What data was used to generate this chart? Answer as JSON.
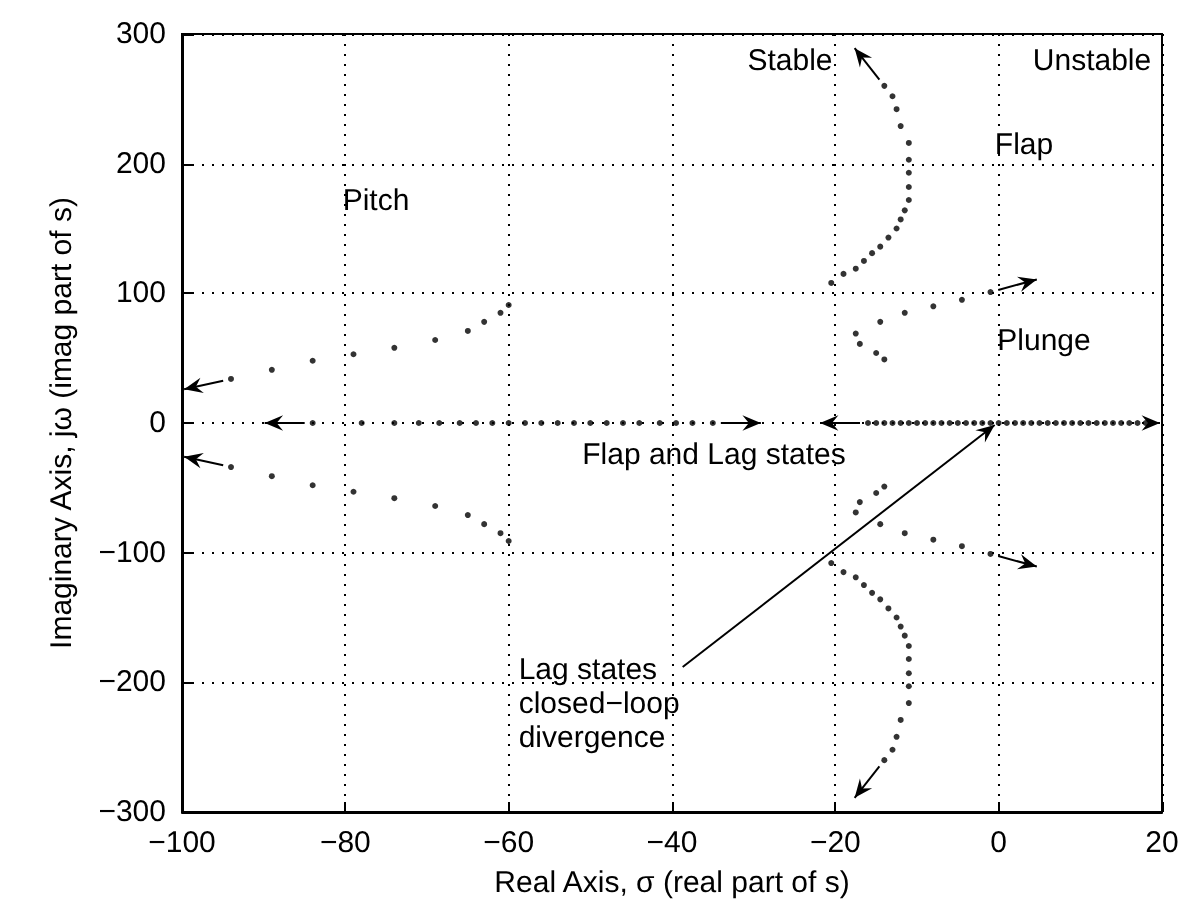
{
  "chart_data": {
    "type": "scatter",
    "xlabel": "Real Axis, σ (real part of s)",
    "ylabel": "Imaginary Axis, jω (imag part of s)",
    "xlim": [
      -100,
      20
    ],
    "xticks": [
      -100,
      -80,
      -60,
      -40,
      -20,
      0,
      20
    ],
    "ylim": [
      -300,
      300
    ],
    "yticks": [
      -300,
      -200,
      -100,
      0,
      100,
      200,
      300
    ],
    "grid": true,
    "marker": "circle",
    "series": [
      {
        "color": "#000000",
        "x": [
          -60,
          -61,
          -63,
          -65,
          -69,
          -74,
          -79,
          -84,
          -89,
          -94
        ],
        "values": [
          91,
          85,
          78,
          71,
          64,
          58,
          53,
          48,
          41,
          34
        ]
      },
      {
        "color": "#000000",
        "x": [
          -60,
          -61,
          -63,
          -65,
          -69,
          -74,
          -79,
          -84,
          -89,
          -94
        ],
        "values": [
          -91,
          -85,
          -78,
          -71,
          -64,
          -58,
          -53,
          -48,
          -41,
          -34
        ]
      },
      {
        "color": "#000000",
        "x": [
          -20.5,
          -19,
          -17.5,
          -16.5,
          -15.5,
          -14.5,
          -13.5,
          -12.5,
          -12,
          -11.5,
          -11,
          -11,
          -11,
          -11,
          -11,
          -12,
          -12.5,
          -13,
          -14
        ],
        "values": [
          108,
          115,
          119,
          125,
          131,
          136,
          143,
          150,
          157,
          164,
          172,
          182,
          193,
          203,
          216,
          229,
          242,
          252,
          260
        ]
      },
      {
        "color": "#000000",
        "x": [
          -20.5,
          -19,
          -17.5,
          -16.5,
          -15.5,
          -14.5,
          -13.5,
          -12.5,
          -12,
          -11.5,
          -11,
          -11,
          -11,
          -11,
          -11,
          -12,
          -12.5,
          -13,
          -14
        ],
        "values": [
          -108,
          -115,
          -119,
          -125,
          -131,
          -136,
          -143,
          -150,
          -157,
          -164,
          -172,
          -182,
          -193,
          -203,
          -216,
          -229,
          -242,
          -252,
          -260
        ]
      },
      {
        "color": "#000000",
        "x": [
          -14,
          -15,
          -17,
          -17.5,
          -14.5,
          -11.5,
          -8,
          -4.5,
          -1
        ],
        "values": [
          49,
          54,
          61,
          69,
          78,
          85,
          90,
          95,
          101
        ]
      },
      {
        "color": "#000000",
        "x": [
          -14,
          -15,
          -17,
          -17.5,
          -14.5,
          -11.5,
          -8,
          -4.5,
          -1
        ],
        "values": [
          -49,
          -54,
          -61,
          -69,
          -78,
          -85,
          -90,
          -95,
          -101
        ]
      },
      {
        "color": "#000000",
        "x": [
          -60,
          -62,
          -64,
          -66,
          -68.5,
          -71,
          -74,
          -78,
          -84
        ],
        "values": [
          0,
          0,
          0,
          0,
          0,
          0,
          0,
          0,
          0
        ]
      },
      {
        "color": "#000000",
        "x": [
          -58,
          -56,
          -54,
          -52,
          -50,
          -48,
          -46,
          -44,
          -41.5,
          -39.5,
          -37.5,
          -35
        ],
        "values": [
          0,
          0,
          0,
          0,
          0,
          0,
          0,
          0,
          0,
          0,
          0,
          0
        ]
      },
      {
        "color": "#000000",
        "x": [
          -13,
          -14,
          -15,
          -16
        ],
        "values": [
          0,
          0,
          0,
          0
        ]
      },
      {
        "color": "#000000",
        "x": [
          -12,
          -11,
          -10,
          -9,
          -8,
          -7,
          -6,
          -5,
          -4,
          -3,
          -2,
          -1,
          0,
          1,
          2,
          3,
          4,
          5,
          6,
          7,
          8,
          9,
          10,
          11,
          12,
          13,
          14,
          15,
          16,
          17,
          18
        ],
        "values": [
          0,
          0,
          0,
          0,
          0,
          0,
          0,
          0,
          0,
          0,
          0,
          0,
          0,
          0,
          0,
          0,
          0,
          0,
          0,
          0,
          0,
          0,
          0,
          0,
          0,
          0,
          0,
          0,
          0,
          0,
          0
        ]
      }
    ],
    "annotations": [
      "Pitch",
      "Flap",
      "Plunge",
      "Flap and Lag states",
      "Stable",
      "Unstable",
      {
        "text": "Lag states\nclosed−loop\ndivergence",
        "x": 0,
        "y": 0
      }
    ]
  }
}
